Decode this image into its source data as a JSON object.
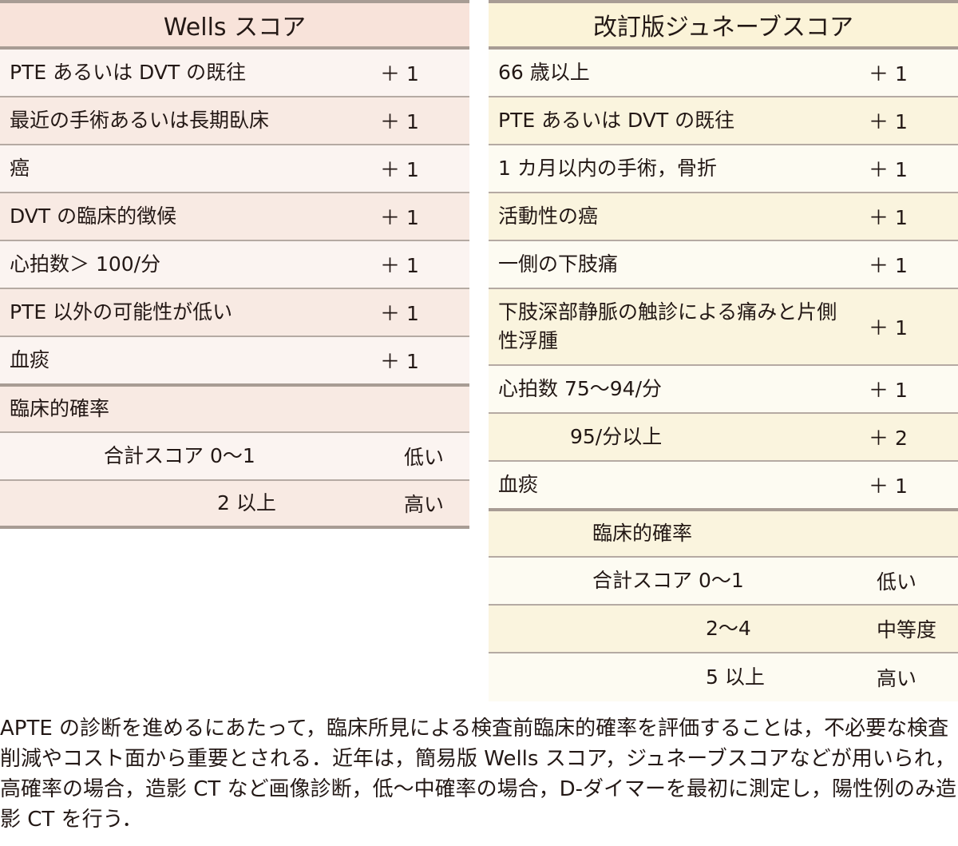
{
  "wells": {
    "title": "Wells スコア",
    "items": [
      {
        "label": "PTE あるいは DVT の既往",
        "score": "＋ 1"
      },
      {
        "label": "最近の手術あるいは長期臥床",
        "score": "＋ 1"
      },
      {
        "label": "癌",
        "score": "＋ 1"
      },
      {
        "label": "DVT の臨床的徴候",
        "score": "＋ 1"
      },
      {
        "label": "心拍数＞ 100/分",
        "score": "＋ 1"
      },
      {
        "label": "PTE 以外の可能性が低い",
        "score": "＋ 1"
      },
      {
        "label": "血痰",
        "score": "＋ 1"
      }
    ],
    "prob_title": "臨床的確率",
    "prob": [
      {
        "label": "合計スコア 0～1",
        "value": "低い"
      },
      {
        "label": "2 以上",
        "value": "高い"
      }
    ]
  },
  "geneva": {
    "title": "改訂版ジュネーブスコア",
    "items": [
      {
        "label": "66 歳以上",
        "score": "＋ 1"
      },
      {
        "label": "PTE あるいは DVT の既往",
        "score": "＋ 1"
      },
      {
        "label": "1 カ月以内の手術，骨折",
        "score": "＋ 1"
      },
      {
        "label": "活動性の癌",
        "score": "＋ 1"
      },
      {
        "label": "一側の下肢痛",
        "score": "＋ 1"
      },
      {
        "label": "下肢深部静脈の触診による痛みと片側性浮腫",
        "score": "＋ 1"
      },
      {
        "label": "心拍数 75～94/分",
        "score": "＋ 1"
      },
      {
        "label": "95/分以上",
        "score": "＋ 2"
      },
      {
        "label": "血痰",
        "score": "＋ 1"
      }
    ],
    "prob_title": "臨床的確率",
    "prob": [
      {
        "label": "合計スコア 0～1",
        "value": "低い"
      },
      {
        "label": "2～4",
        "value": "中等度"
      },
      {
        "label": "5 以上",
        "value": "高い"
      }
    ]
  },
  "note": "APTE の診断を進めるにあたって，臨床所見による検査前臨床的確率を評価することは，不必要な検査削減やコスト面から重要とされる．近年は，簡易版 Wells スコア，ジュネーブスコアなどが用いられ，高確率の場合，造影 CT など画像診断，低～中確率の場合，D-ダイマーを最初に測定し，陽性例のみ造影 CT を行う．"
}
